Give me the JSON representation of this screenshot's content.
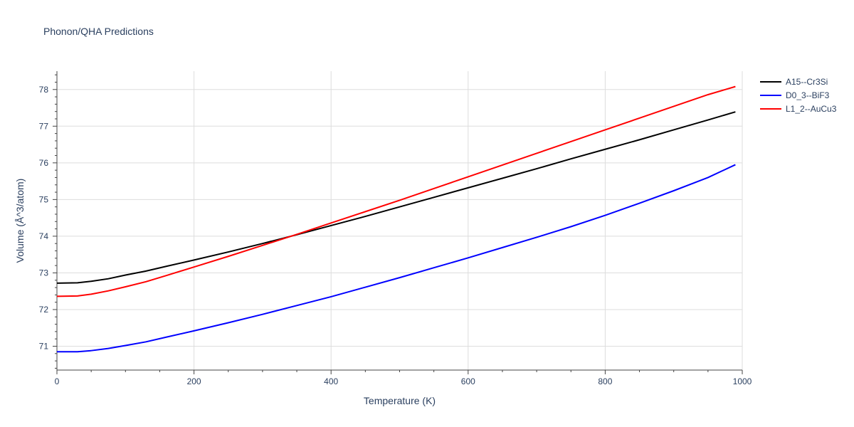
{
  "chart_data": {
    "type": "line",
    "title": "Phonon/QHA Predictions",
    "xlabel": "Temperature (K)",
    "ylabel": "Volume (Å^3/atom)",
    "xlim": [
      0,
      1000
    ],
    "ylim": [
      70.35,
      78.5
    ],
    "x_ticks": [
      0,
      200,
      400,
      600,
      800,
      1000
    ],
    "y_ticks": [
      71,
      72,
      73,
      74,
      75,
      76,
      77,
      78
    ],
    "grid": true,
    "legend_position": "top-right",
    "series": [
      {
        "name": "A15--Cr3Si",
        "color": "#000000",
        "x": [
          0,
          30,
          50,
          75,
          100,
          130,
          160,
          200,
          250,
          300,
          350,
          400,
          450,
          500,
          550,
          600,
          650,
          700,
          750,
          800,
          850,
          900,
          950,
          990
        ],
        "y": [
          72.72,
          72.73,
          72.77,
          72.84,
          72.94,
          73.05,
          73.18,
          73.35,
          73.57,
          73.8,
          74.04,
          74.29,
          74.54,
          74.8,
          75.06,
          75.32,
          75.58,
          75.84,
          76.11,
          76.37,
          76.63,
          76.9,
          77.17,
          77.39
        ]
      },
      {
        "name": "D0_3--BiF3",
        "color": "#0000ff",
        "x": [
          0,
          30,
          50,
          75,
          100,
          130,
          160,
          200,
          250,
          300,
          350,
          400,
          450,
          500,
          550,
          600,
          650,
          700,
          750,
          800,
          850,
          900,
          950,
          990
        ],
        "y": [
          70.85,
          70.85,
          70.88,
          70.94,
          71.02,
          71.12,
          71.25,
          71.42,
          71.64,
          71.87,
          72.11,
          72.35,
          72.61,
          72.87,
          73.14,
          73.41,
          73.69,
          73.97,
          74.26,
          74.57,
          74.9,
          75.24,
          75.6,
          75.95
        ]
      },
      {
        "name": "L1_2--AuCu3",
        "color": "#ff0000",
        "x": [
          0,
          30,
          50,
          75,
          100,
          130,
          160,
          200,
          250,
          300,
          350,
          400,
          450,
          500,
          550,
          600,
          650,
          700,
          750,
          800,
          850,
          900,
          950,
          990
        ],
        "y": [
          72.36,
          72.37,
          72.42,
          72.51,
          72.62,
          72.76,
          72.93,
          73.16,
          73.45,
          73.75,
          74.05,
          74.36,
          74.67,
          74.98,
          75.3,
          75.62,
          75.94,
          76.26,
          76.58,
          76.9,
          77.22,
          77.54,
          77.86,
          78.08
        ]
      }
    ]
  }
}
